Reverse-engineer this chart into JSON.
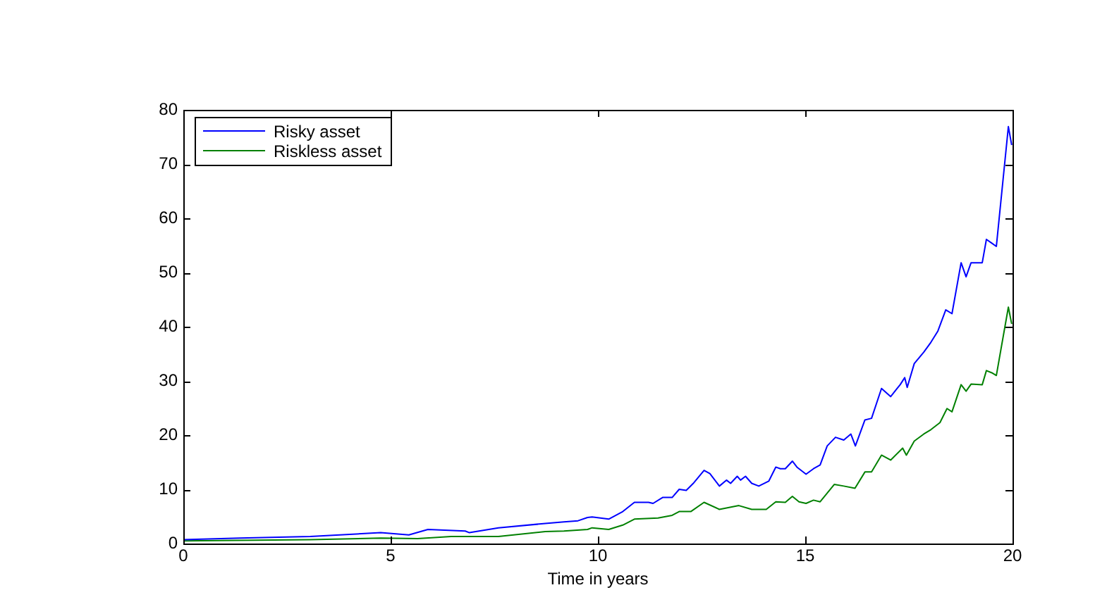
{
  "chart_data": {
    "type": "line",
    "xlabel": "Time in years",
    "xlim": [
      0,
      20
    ],
    "xticks": [
      0,
      5,
      10,
      15,
      20
    ],
    "ylim": [
      0,
      80
    ],
    "yticks": [
      0,
      10,
      20,
      30,
      40,
      50,
      60,
      70,
      80
    ],
    "legend": "top left",
    "grid": false,
    "marker": "none",
    "line_style": "solid",
    "series": [
      {
        "name": "Risky asset",
        "color": "#0000ff",
        "x": [
          0,
          1.36,
          3.06,
          4.76,
          5.44,
          5.9,
          6.8,
          6.9,
          7.6,
          8.73,
          9.18,
          9.52,
          9.75,
          9.86,
          10.26,
          10.6,
          10.88,
          11.22,
          11.33,
          11.56,
          11.79,
          11.96,
          12.13,
          12.3,
          12.56,
          12.7,
          12.93,
          13.1,
          13.2,
          13.36,
          13.44,
          13.56,
          13.71,
          13.88,
          14.12,
          14.29,
          14.4,
          14.52,
          14.69,
          14.8,
          15.02,
          15.2,
          15.36,
          15.53,
          15.73,
          15.93,
          16.1,
          16.21,
          16.44,
          16.6,
          16.84,
          17.06,
          17.29,
          17.4,
          17.46,
          17.63,
          17.86,
          18.03,
          18.2,
          18.39,
          18.54,
          18.76,
          18.88,
          19.0,
          19.27,
          19.37,
          19.5,
          19.61,
          19.9,
          19.98
        ],
        "values": [
          0.7,
          1.0,
          1.3,
          2.0,
          1.6,
          2.6,
          2.3,
          2.0,
          2.9,
          3.7,
          4.0,
          4.2,
          4.8,
          4.9,
          4.5,
          5.9,
          7.6,
          7.6,
          7.4,
          8.5,
          8.5,
          10.0,
          9.8,
          11.1,
          13.5,
          12.9,
          10.6,
          11.7,
          11.1,
          12.4,
          11.7,
          12.4,
          11.1,
          10.6,
          11.5,
          14.1,
          13.8,
          13.8,
          15.2,
          14.1,
          12.8,
          13.8,
          14.5,
          18.0,
          19.6,
          19.1,
          20.2,
          18.0,
          22.8,
          23.1,
          28.6,
          27.1,
          29.3,
          30.6,
          28.8,
          33.2,
          35.3,
          37.1,
          39.2,
          43.1,
          42.4,
          51.8,
          49.2,
          51.8,
          51.8,
          56.1,
          55.4,
          54.8,
          76.9,
          73.5
        ]
      },
      {
        "name": "Riskless asset",
        "color": "#008000",
        "x": [
          0,
          3.06,
          4.76,
          5.65,
          6.46,
          7.6,
          8.73,
          9.18,
          9.75,
          9.86,
          10.26,
          10.6,
          10.88,
          11.45,
          11.79,
          11.96,
          12.24,
          12.56,
          12.93,
          13.4,
          13.71,
          14.06,
          14.29,
          14.52,
          14.69,
          14.85,
          15.02,
          15.2,
          15.36,
          15.7,
          15.93,
          16.2,
          16.44,
          16.6,
          16.84,
          17.06,
          17.35,
          17.44,
          17.63,
          17.86,
          18.03,
          18.25,
          18.42,
          18.54,
          18.76,
          18.88,
          19.0,
          19.27,
          19.37,
          19.5,
          19.61,
          19.9,
          19.98
        ],
        "values": [
          0.5,
          0.7,
          1.0,
          0.9,
          1.3,
          1.3,
          2.2,
          2.3,
          2.6,
          2.9,
          2.6,
          3.4,
          4.5,
          4.7,
          5.2,
          5.9,
          5.9,
          7.6,
          6.3,
          7.0,
          6.3,
          6.3,
          7.7,
          7.6,
          8.7,
          7.7,
          7.4,
          8.0,
          7.7,
          10.9,
          10.6,
          10.2,
          13.2,
          13.2,
          16.3,
          15.4,
          17.6,
          16.3,
          18.9,
          20.2,
          21.0,
          22.3,
          24.9,
          24.3,
          29.3,
          28.1,
          29.4,
          29.3,
          31.9,
          31.5,
          31.0,
          43.6,
          40.5
        ]
      }
    ]
  }
}
